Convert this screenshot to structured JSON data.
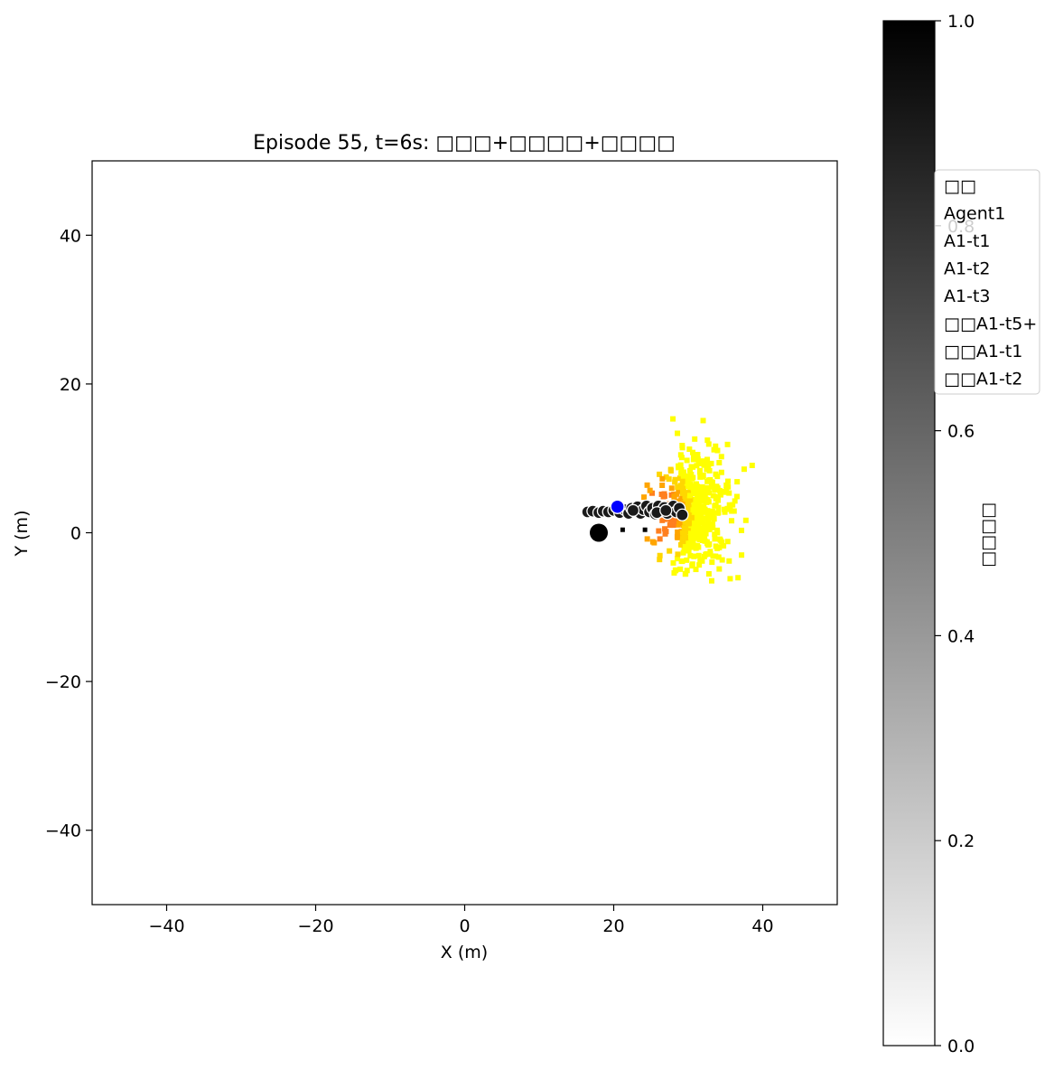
{
  "chart_data": {
    "type": "scatter",
    "title": "Episode 55, t=6s: □□□+□□□□+□□□□",
    "xlabel": "X (m)",
    "ylabel": "Y (m)",
    "xlim": [
      -50,
      50
    ],
    "ylim": [
      -50,
      50
    ],
    "xticks": [
      -40,
      -20,
      0,
      20,
      40
    ],
    "yticks": [
      -40,
      -20,
      0,
      20,
      40
    ],
    "grid": false,
    "legend": {
      "placement": "right, outside plot, overlapping colorbar",
      "entries": [
        "□□",
        "Agent1",
        "A1-t1",
        "A1-t2",
        "A1-t3",
        "□□A1-t5+",
        "□□A1-t1",
        "□□A1-t2"
      ]
    },
    "colorbar": {
      "label": "□□□□",
      "range": [
        0,
        1
      ],
      "ticks": [
        0.0,
        0.2,
        0.4,
        0.6,
        0.8,
        1.0
      ],
      "tick_labels": [
        "0.0",
        "0.2",
        "0.4",
        "0.6",
        "0.8",
        "1.0"
      ],
      "colormap": "gray_r",
      "color_low": "#ffffff",
      "color_high": "#000000"
    },
    "series": [
      {
        "role": "agent-current",
        "color": "#000000",
        "points": [
          [
            18,
            0
          ]
        ]
      },
      {
        "role": "agent-prediction",
        "color": "#0000ff",
        "points": [
          [
            20.5,
            3.5
          ]
        ]
      },
      {
        "role": "agent-history-markers",
        "color": "#000000",
        "points": [
          [
            21.2,
            0.4
          ],
          [
            24.2,
            0.4
          ]
        ]
      },
      {
        "role": "trajectory-samples",
        "color": "#1a1a1a",
        "edge_color": "#ffffff",
        "points": [
          [
            16.5,
            2.8
          ],
          [
            17.2,
            2.9
          ],
          [
            18.0,
            2.7
          ],
          [
            18.6,
            2.9
          ],
          [
            19.3,
            2.8
          ],
          [
            20.0,
            3.0
          ],
          [
            20.8,
            2.7
          ],
          [
            21.5,
            3.1
          ],
          [
            22.0,
            2.6
          ],
          [
            22.4,
            3.3
          ],
          [
            22.8,
            2.9
          ],
          [
            23.2,
            3.5
          ],
          [
            23.6,
            2.6
          ],
          [
            24.0,
            3.1
          ],
          [
            24.4,
            3.6
          ],
          [
            24.8,
            2.8
          ],
          [
            25.2,
            3.3
          ],
          [
            25.6,
            2.5
          ],
          [
            26.0,
            3.6
          ],
          [
            26.4,
            2.9
          ],
          [
            26.8,
            3.4
          ],
          [
            27.2,
            2.6
          ],
          [
            27.6,
            3.2
          ],
          [
            28.0,
            3.6
          ],
          [
            28.4,
            2.8
          ],
          [
            28.8,
            3.3
          ],
          [
            29.2,
            2.4
          ],
          [
            22.6,
            3.0
          ],
          [
            25.8,
            2.7
          ],
          [
            27.0,
            3.0
          ]
        ]
      }
    ],
    "heatmap": {
      "colors": [
        "#ffff00",
        "#ffd700",
        "#ffa500",
        "#ff7f1f"
      ],
      "description": "Occupancy cells centered near (26, 3), spanning x 21-38, y -6 to 17"
    }
  }
}
